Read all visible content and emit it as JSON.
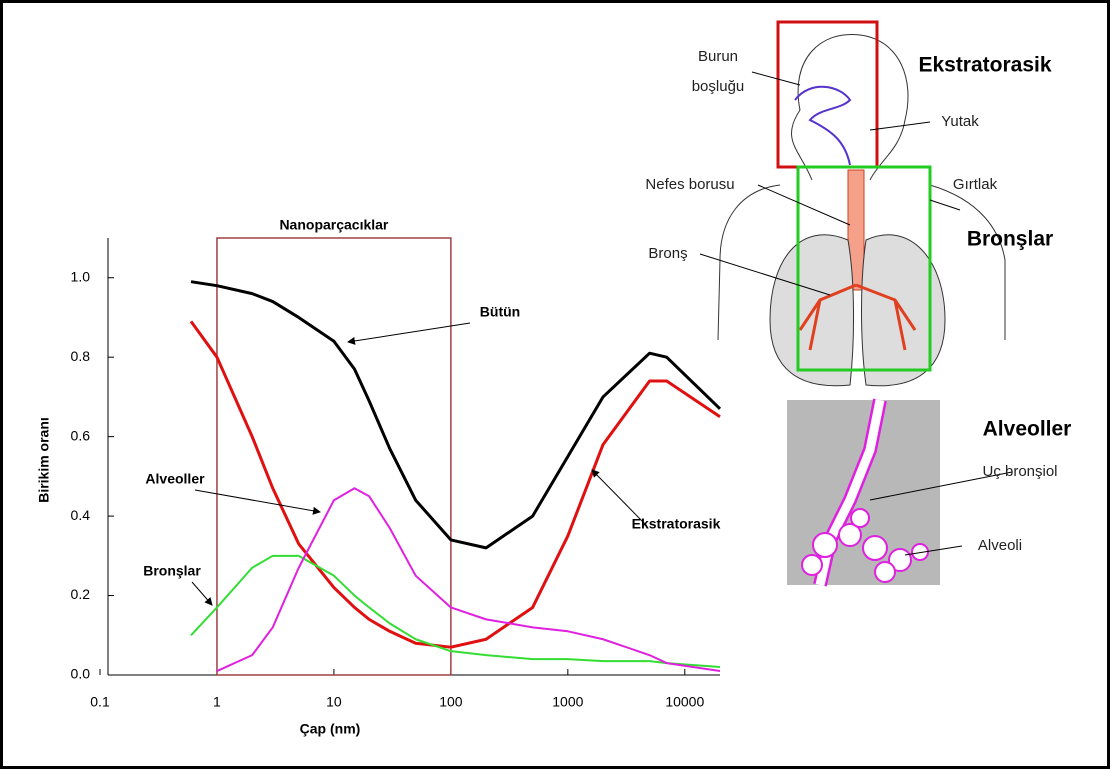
{
  "chart_data": {
    "type": "line",
    "x_label": "Çap (nm)",
    "y_label": "Birikim oranı",
    "log_x": true,
    "highlight": {
      "label": "Nanoparçacıklar",
      "range": [
        1,
        100
      ]
    },
    "x": [
      0.6,
      1,
      2,
      3,
      5,
      10,
      15,
      20,
      30,
      50,
      100,
      200,
      500,
      1000,
      2000,
      5000,
      7000,
      20000
    ],
    "series": [
      {
        "name": "Bütün",
        "color": "#000000",
        "values": [
          0.99,
          0.98,
          0.96,
          0.94,
          0.9,
          0.84,
          0.77,
          0.69,
          0.57,
          0.44,
          0.34,
          0.32,
          0.4,
          0.55,
          0.7,
          0.81,
          0.8,
          0.67
        ]
      },
      {
        "name": "Ekstratorasik",
        "color": "#e01010",
        "values": [
          0.89,
          0.8,
          0.6,
          0.47,
          0.33,
          0.22,
          0.17,
          0.14,
          0.11,
          0.08,
          0.07,
          0.09,
          0.17,
          0.35,
          0.58,
          0.74,
          0.74,
          0.65
        ]
      },
      {
        "name": "Bronşlar",
        "color": "#33dd33",
        "values": [
          0.1,
          0.17,
          0.27,
          0.3,
          0.3,
          0.25,
          0.2,
          0.17,
          0.13,
          0.09,
          0.06,
          0.05,
          0.04,
          0.04,
          0.035,
          0.035,
          0.03,
          0.02
        ]
      },
      {
        "name": "Alveoller",
        "color": "#e020e0",
        "values": [
          null,
          0.01,
          0.05,
          0.12,
          0.27,
          0.44,
          0.47,
          0.45,
          0.37,
          0.25,
          0.17,
          0.14,
          0.12,
          0.11,
          0.09,
          0.05,
          0.03,
          0.01
        ]
      }
    ],
    "xlim": [
      0.1,
      20000
    ],
    "xticks": [
      0.1,
      1,
      10,
      100,
      1000,
      10000
    ],
    "ylim": [
      0,
      1.1
    ],
    "yticks": [
      {
        "value": 0,
        "label": "0.0"
      },
      0.2,
      0.4,
      0.6,
      0.8,
      {
        "value": 1,
        "label": "1.0"
      }
    ]
  },
  "illustration": {
    "regions": [
      "Ekstratorasik",
      "Bronşlar",
      "Alveoller"
    ],
    "labels": [
      "Burun",
      "boşluğu",
      "Yutak",
      "Nefes borusu",
      "Gırtlak",
      "Bronş",
      "Uç bronşiol",
      "Alveoli"
    ]
  }
}
